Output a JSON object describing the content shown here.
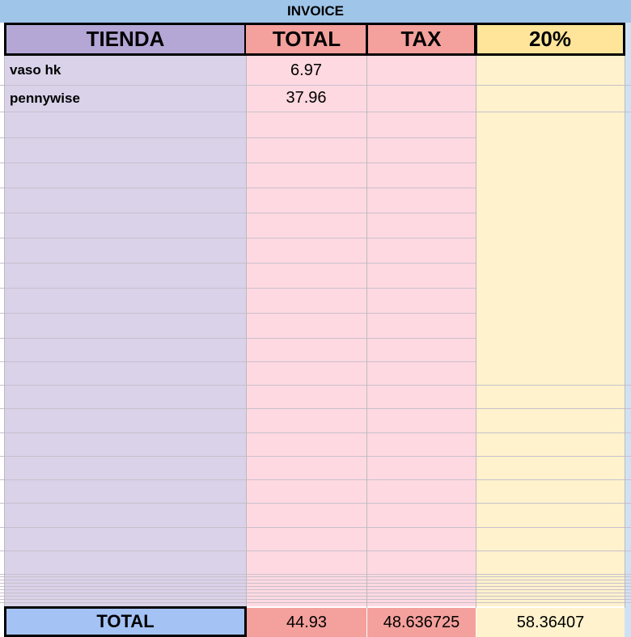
{
  "title": "INVOICE",
  "header": [
    "TIENDA",
    "TOTAL",
    "TAX",
    "20%"
  ],
  "rows": [
    [
      "vaso hk",
      "6.97"
    ],
    [
      "pennywise",
      "37.96"
    ]
  ],
  "footer": [
    "TOTAL",
    "44.93",
    "48.636725",
    "58.36407"
  ]
}
